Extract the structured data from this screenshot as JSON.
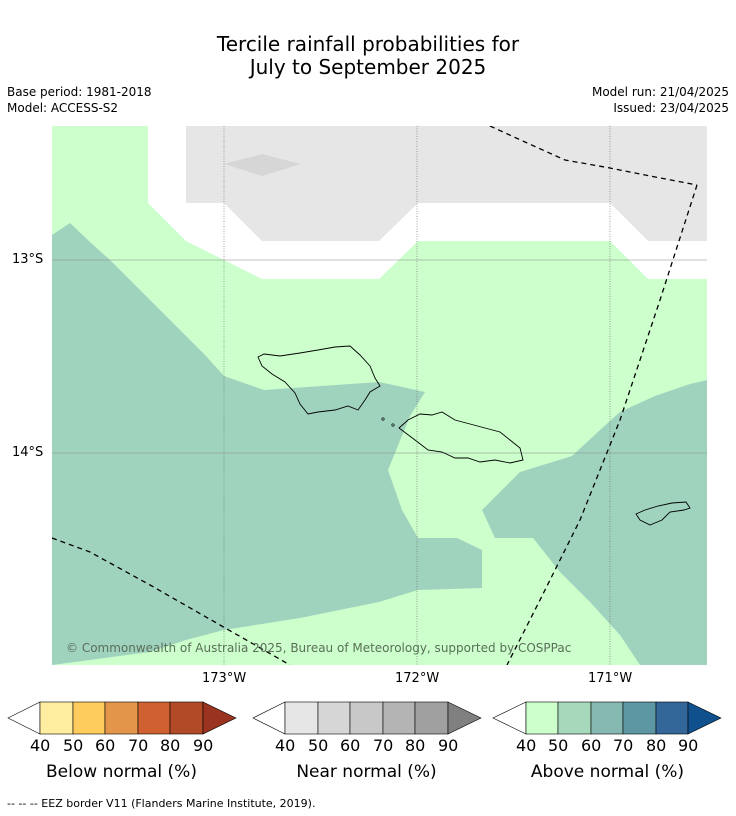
{
  "title": {
    "line1": "Tercile rainfall probabilities for",
    "line2": "July to September 2025"
  },
  "meta": {
    "base_period": "Base period: 1981-2018",
    "model": "Model: ACCESS-S2",
    "model_run": "Model run: 21/04/2025",
    "issued": "Issued: 23/04/2025"
  },
  "axes": {
    "lat_labels": [
      "13°S",
      "14°S"
    ],
    "lon_labels": [
      "173°W",
      "172°W",
      "171°W"
    ]
  },
  "copyright": "© Commonwealth of Australia 2025, Bureau of Meteorology, supported by COSPPac",
  "colorbars": [
    {
      "caption": "Below normal (%)",
      "ticks": [
        "40",
        "50",
        "60",
        "70",
        "80",
        "90"
      ],
      "colors": [
        "#ffeda0",
        "#fecc5c",
        "#e3954a",
        "#d0602f",
        "#b24a27",
        "#9a3320"
      ]
    },
    {
      "caption": "Near normal (%)",
      "ticks": [
        "40",
        "50",
        "60",
        "70",
        "80",
        "90"
      ],
      "colors": [
        "#e6e6e6",
        "#d6d6d6",
        "#c8c8c8",
        "#b4b4b4",
        "#a0a0a0",
        "#808080"
      ]
    },
    {
      "caption": "Above normal (%)",
      "ticks": [
        "40",
        "50",
        "60",
        "70",
        "80",
        "90"
      ],
      "colors": [
        "#ccffcc",
        "#a6d9bb",
        "#84b8b0",
        "#5e97a4",
        "#336699",
        "#10508c"
      ]
    }
  ],
  "footer": "--  --  -- EEZ border V11 (Flanders Marine Institute, 2019).",
  "map_colors": {
    "above_40_50": "#ccffcc",
    "above_50_60": "#a0d3bd",
    "near_40_50": "#e6e6e6",
    "near_50_60": "#d6d6d6"
  }
}
